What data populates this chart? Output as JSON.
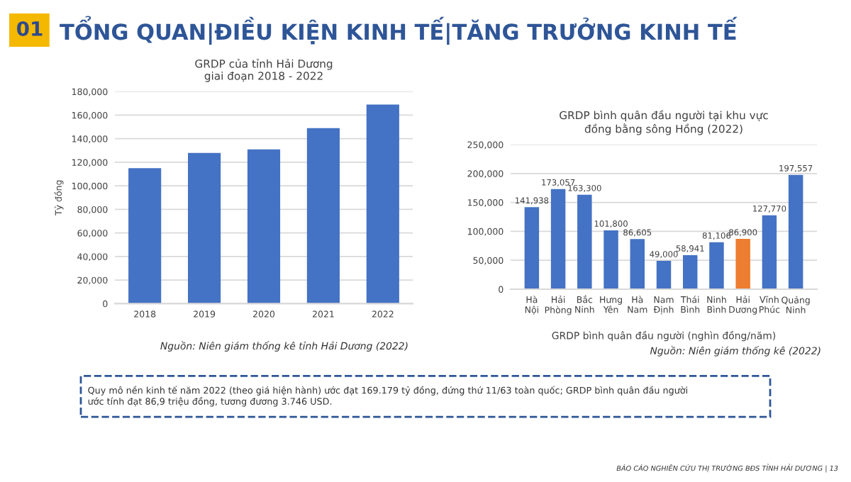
{
  "chart_data": [
    {
      "type": "bar",
      "title": "GRDP của tỉnh Hải Dương\ngiai đoạn 2018 - 2022",
      "ylabel": "Tỷ đồng",
      "categories": [
        "2018",
        "2019",
        "2020",
        "2021",
        "2022"
      ],
      "values": [
        115000,
        128000,
        131000,
        149000,
        169000
      ],
      "color": "#4472c4",
      "ylim": [
        0,
        180000
      ],
      "yticks": [
        0,
        {
          "value": 20000,
          "label": "20,000"
        },
        {
          "value": 40000,
          "label": "40,000"
        },
        {
          "value": 60000,
          "label": "60,000"
        },
        {
          "value": 80000,
          "label": "80,000"
        },
        {
          "value": 100000,
          "label": "100,000"
        },
        {
          "value": 120000,
          "label": "120,000"
        },
        {
          "value": 140000,
          "label": "140,000"
        },
        {
          "value": 160000,
          "label": "160,000"
        },
        {
          "value": 180000,
          "label": "180,000"
        }
      ],
      "grid": "y",
      "annotations": [
        "Nguồn: Niên giám thống kê tỉnh Hải Dương (2022)"
      ]
    },
    {
      "type": "bar",
      "title": "GRDP bình quân đầu người tại khu vực\nđồng bằng sông Hồng (2022)",
      "xlabel": "GRDP bình quân đầu người (nghìn đồng/năm)",
      "categories": [
        "Hà Nội",
        "Hải Phòng",
        "Bắc Ninh",
        "Hưng Yên",
        "Hà Nam",
        "Nam Định",
        "Thái Bình",
        "Ninh Bình",
        "Hải Dương",
        "Vĩnh Phúc",
        "Quảng Ninh"
      ],
      "values": [
        141938,
        173057,
        163300,
        101800,
        86605,
        49000,
        58941,
        81106,
        86900,
        127770,
        197557
      ],
      "value_labels": [
        "141,938",
        "173,057",
        "163,300",
        "101,800",
        "86,605",
        "49,000",
        "58,941",
        "81,106",
        "86,900",
        "127,770",
        "197,557"
      ],
      "colors": [
        "#4472c4",
        "#4472c4",
        "#4472c4",
        "#4472c4",
        "#4472c4",
        "#4472c4",
        "#4472c4",
        "#4472c4",
        "#ed7d31",
        "#4472c4",
        "#4472c4"
      ],
      "ylim": [
        0,
        250000
      ],
      "yticks": [
        0,
        {
          "value": 50000,
          "label": "50,000"
        },
        {
          "value": 100000,
          "label": "100,000"
        },
        {
          "value": 150000,
          "label": "150,000"
        },
        {
          "value": 200000,
          "label": "200,000"
        },
        {
          "value": 250000,
          "label": "250,000"
        }
      ],
      "grid": "y",
      "annotations": [
        "Nguồn: Niên giám thống kê (2022)"
      ]
    },
    {
      "type": "other",
      "annotations": [
        "01",
        "TỔNG QUAN|ĐIỀU KIỆN KINH TẾ|TĂNG TRƯỞNG KINH TẾ",
        "Quy mô nền kinh tế năm 2022 (theo giá hiện hành) ước đạt 169.179 tỷ đồng, đứng thứ 11/63 toàn quốc; GRDP bình quân đầu người\nước tính đạt 86,9 triệu đồng, tương đương 3.746 USD.",
        "BÁO CÁO NGHIÊN CỨU THỊ TRƯỜNG BĐS TỈNH HẢI DƯƠNG | 13"
      ]
    }
  ]
}
